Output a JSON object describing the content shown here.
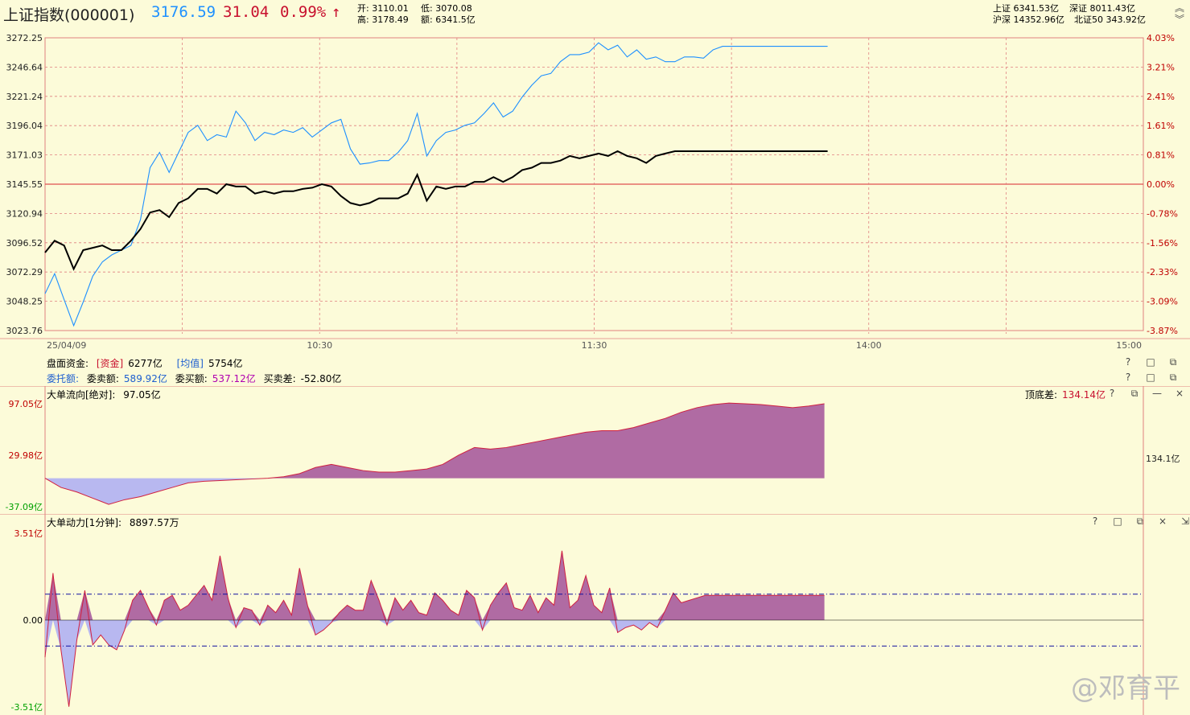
{
  "header": {
    "title": "上证指数(000001)",
    "price": "3176.59",
    "change": "31.04",
    "change_pct": "0.99%",
    "arrow": "↑",
    "open_label": "开:",
    "open": "3110.01",
    "low_label": "低:",
    "low": "3070.08",
    "high_label": "高:",
    "high": "3178.49",
    "amount_label": "额:",
    "amount": "6341.5亿",
    "sh_label": "上证",
    "sh": "6341.53亿",
    "sz_label": "深证",
    "sz": "8011.43亿",
    "hs_label": "沪深",
    "hs": "14352.96亿",
    "bz_label": "北证50",
    "bz": "343.92亿"
  },
  "colors": {
    "up": "#c8102e",
    "down": "#00a000",
    "blue": "#1e90ff",
    "grid": "#e08080",
    "axis": "#c00000",
    "panelFill": "#b06ba3",
    "negFill": "#b8b8f0"
  },
  "chart_data": [
    {
      "type": "line",
      "title": "上证指数(000001)",
      "time_labels": [
        "25/04/09",
        "10:30",
        "11:30",
        "14:00",
        "15:00"
      ],
      "y_ticks": [
        "3272.25",
        "3246.64",
        "3221.24",
        "3196.04",
        "3171.03",
        "3145.55",
        "3120.94",
        "3096.52",
        "3072.29",
        "3048.25",
        "3023.76"
      ],
      "pct_ticks": [
        "4.03%",
        "3.21%",
        "2.41%",
        "1.61%",
        "0.81%",
        "0.00%",
        "-0.78%",
        "-1.56%",
        "-2.33%",
        "-3.09%",
        "-3.87%"
      ],
      "ylim": [
        3023.76,
        3272.25
      ],
      "baseline": 3145.55,
      "x_count": 241,
      "series": [
        {
          "name": "",
          "color": "#1e90ff",
          "x": [
            0,
            6,
            12,
            18,
            24,
            30,
            36,
            42,
            48,
            54,
            60,
            66,
            72,
            78,
            84,
            90,
            96,
            102,
            108,
            114,
            120,
            126,
            132,
            138,
            144,
            150,
            156,
            162,
            168,
            174,
            180,
            186,
            192,
            198,
            204,
            210,
            216,
            222,
            228,
            234,
            240,
            246,
            252,
            258,
            264,
            270,
            276,
            282,
            288,
            294,
            300,
            306,
            312,
            318,
            324,
            330,
            336,
            342,
            348,
            354,
            360,
            366,
            372,
            378,
            384,
            390,
            396,
            402,
            408,
            414,
            420,
            426,
            432,
            438,
            444,
            450,
            456,
            462,
            468,
            474,
            480,
            486,
            492
          ],
          "values": [
            3055,
            3072,
            3050,
            3028,
            3048,
            3070,
            3082,
            3088,
            3092,
            3096,
            3118,
            3162,
            3175,
            3158,
            3175,
            3192,
            3198,
            3185,
            3190,
            3188,
            3210,
            3200,
            3185,
            3192,
            3190,
            3194,
            3192,
            3196,
            3188,
            3194,
            3200,
            3203,
            3178,
            3165,
            3166,
            3168,
            3168,
            3175,
            3185,
            3208,
            3172,
            3185,
            3192,
            3194,
            3198,
            3200,
            3208,
            3217,
            3205,
            3210,
            3222,
            3232,
            3240,
            3242,
            3252,
            3258,
            3258,
            3260,
            3268,
            3262,
            3266,
            3256,
            3262,
            3254,
            3256,
            3252,
            3252,
            3256,
            3256,
            3255,
            3262,
            3265,
            3265,
            3265,
            3265,
            3265,
            3265,
            3265,
            3265,
            3265,
            3265,
            3265,
            3265
          ]
        },
        {
          "name": "",
          "color": "#000000",
          "x": [
            0,
            6,
            12,
            18,
            24,
            30,
            36,
            42,
            48,
            54,
            60,
            66,
            72,
            78,
            84,
            90,
            96,
            102,
            108,
            114,
            120,
            126,
            132,
            138,
            144,
            150,
            156,
            162,
            168,
            174,
            180,
            186,
            192,
            198,
            204,
            210,
            216,
            222,
            228,
            234,
            240,
            246,
            252,
            258,
            264,
            270,
            276,
            282,
            288,
            294,
            300,
            306,
            312,
            318,
            324,
            330,
            336,
            342,
            348,
            354,
            360,
            366,
            372,
            378,
            384,
            390,
            396,
            402,
            408,
            414,
            420,
            426,
            432,
            438,
            444,
            450,
            456,
            462,
            468,
            474,
            480,
            486,
            492
          ],
          "values": [
            3090,
            3100,
            3096,
            3076,
            3092,
            3094,
            3096,
            3092,
            3092,
            3100,
            3110,
            3124,
            3126,
            3120,
            3132,
            3136,
            3144,
            3144,
            3140,
            3148,
            3146,
            3146,
            3140,
            3142,
            3140,
            3142,
            3142,
            3144,
            3145,
            3148,
            3146,
            3138,
            3132,
            3130,
            3132,
            3136,
            3136,
            3136,
            3140,
            3156,
            3134,
            3146,
            3144,
            3146,
            3146,
            3150,
            3150,
            3154,
            3150,
            3154,
            3160,
            3162,
            3166,
            3166,
            3168,
            3172,
            3170,
            3172,
            3174,
            3172,
            3176,
            3172,
            3170,
            3166,
            3172,
            3174,
            3176,
            3176,
            3176,
            3176,
            3176,
            3176,
            3176,
            3176,
            3176,
            3176,
            3176,
            3176,
            3176,
            3176,
            3176,
            3176,
            3176
          ]
        }
      ]
    },
    {
      "type": "area",
      "title": "大单流向[绝对]",
      "y_ticks": [
        "97.05亿",
        "29.98亿",
        "-37.09亿"
      ],
      "ylim": [
        -37.09,
        97.05
      ],
      "x": [
        0,
        10,
        20,
        30,
        40,
        50,
        60,
        70,
        80,
        90,
        100,
        110,
        120,
        130,
        140,
        150,
        160,
        170,
        180,
        190,
        200,
        210,
        220,
        230,
        240,
        250,
        260,
        270,
        280,
        290,
        300,
        310,
        320,
        330,
        340,
        350,
        360,
        370,
        380,
        390,
        400,
        410,
        420,
        430,
        440,
        450,
        460,
        470,
        480,
        490
      ],
      "values": [
        0,
        -12,
        -18,
        -26,
        -34,
        -28,
        -24,
        -18,
        -12,
        -6,
        -4,
        -3,
        -2,
        -1,
        0,
        2,
        6,
        14,
        18,
        14,
        10,
        8,
        8,
        10,
        12,
        18,
        30,
        40,
        38,
        40,
        44,
        48,
        52,
        56,
        60,
        62,
        62,
        66,
        72,
        78,
        86,
        92,
        96,
        98,
        97,
        96,
        94,
        92,
        94,
        97
      ]
    },
    {
      "type": "area",
      "title": "大单动力[1分钟]",
      "y_ticks": [
        "3.51亿",
        "0.00",
        "-3.51亿"
      ],
      "ylim": [
        -3.51,
        3.51
      ],
      "ref_lines": [
        1.05,
        -1.05
      ],
      "x": [
        0,
        5,
        10,
        15,
        20,
        25,
        30,
        35,
        40,
        45,
        50,
        55,
        60,
        65,
        70,
        75,
        80,
        85,
        90,
        95,
        100,
        105,
        110,
        115,
        120,
        125,
        130,
        135,
        140,
        145,
        150,
        155,
        160,
        165,
        170,
        175,
        180,
        185,
        190,
        195,
        200,
        205,
        210,
        215,
        220,
        225,
        230,
        235,
        240,
        245,
        250,
        255,
        260,
        265,
        270,
        275,
        280,
        285,
        290,
        295,
        300,
        305,
        310,
        315,
        320,
        325,
        330,
        335,
        340,
        345,
        350,
        355,
        360,
        365,
        370,
        375,
        380,
        385,
        390,
        395,
        400,
        405,
        410,
        415,
        420,
        425,
        430,
        435,
        440,
        445,
        450,
        455,
        460,
        465,
        470,
        475,
        480,
        485,
        490
      ],
      "values": [
        -1.5,
        1.9,
        -1.2,
        -3.5,
        -0.8,
        1.2,
        -1.0,
        -0.6,
        -1.0,
        -1.2,
        -0.4,
        0.8,
        1.2,
        0.5,
        -0.2,
        0.8,
        1.0,
        0.4,
        0.6,
        1.0,
        1.4,
        0.8,
        2.6,
        0.9,
        -0.3,
        0.5,
        0.4,
        -0.2,
        0.6,
        0.3,
        0.8,
        0.2,
        2.1,
        0.6,
        -0.6,
        -0.4,
        -0.1,
        0.3,
        0.6,
        0.4,
        0.4,
        1.6,
        0.8,
        -0.2,
        0.9,
        0.4,
        0.8,
        0.3,
        0.2,
        1.1,
        0.8,
        0.4,
        0.2,
        1.2,
        0.9,
        -0.4,
        0.6,
        1.1,
        1.5,
        0.5,
        0.4,
        1.0,
        0.3,
        0.9,
        0.6,
        2.8,
        0.5,
        0.8,
        1.8,
        0.6,
        0.3,
        1.3,
        -0.5,
        -0.3,
        -0.2,
        -0.4,
        -0.1,
        -0.3,
        0.4,
        1.1,
        0.7,
        0.8,
        0.9,
        1.0,
        1.0,
        1.0,
        1.0,
        1.0,
        1.0,
        1.0,
        1.0,
        1.0,
        1.0,
        1.0,
        1.0,
        1.0,
        1.0,
        1.0,
        1.0
      ]
    }
  ],
  "panels": {
    "capital": {
      "label": "盘面资金:",
      "cap_tag": "[资金]",
      "cap_val": "6277亿",
      "avg_tag": "[均值]",
      "avg_val": "5754亿"
    },
    "orders": {
      "label": "委托额:",
      "sell_label": "委卖额:",
      "sell_val": "589.92亿",
      "buy_label": "委买额:",
      "buy_val": "537.12亿",
      "diff_label": "买卖差:",
      "diff_val": "-52.80亿"
    },
    "flow": {
      "label": "大单流向[绝对]:",
      "value": "97.05亿",
      "extra_label": "顶底差:",
      "extra_val": "134.14亿",
      "side_val": "134.1亿"
    },
    "power": {
      "label": "大单动力[1分钟]:",
      "value": "8897.57万"
    }
  },
  "ctrl_glyphs": [
    "?",
    "□",
    "⧉",
    "×"
  ],
  "watermark": "@邓育平"
}
